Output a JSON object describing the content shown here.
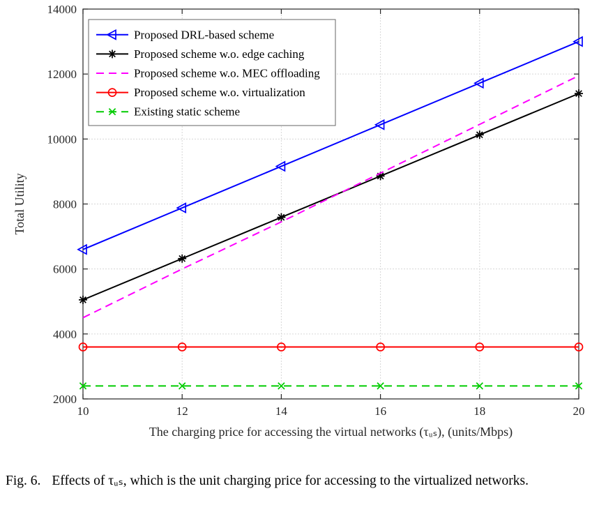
{
  "figure": {
    "caption_label": "Fig. 6.",
    "caption_text": "Effects of τᵤₛ, which is the unit charging price for accessing to the virtualized networks."
  },
  "chart_data": {
    "type": "line",
    "title": "",
    "xlabel": "The charging price for accessing the virtual networks (τᵤₛ), (units/Mbps)",
    "ylabel": "Total Utility",
    "xlim": [
      10,
      20
    ],
    "ylim": [
      2000,
      14000
    ],
    "xticks": [
      10,
      12,
      14,
      16,
      18,
      20
    ],
    "yticks": [
      2000,
      4000,
      6000,
      8000,
      10000,
      12000,
      14000
    ],
    "grid": true,
    "legend_position": "top-left",
    "x": [
      10,
      12,
      14,
      16,
      18,
      20
    ],
    "series": [
      {
        "name": "Proposed DRL-based scheme",
        "color": "#0000ff",
        "dash": "solid",
        "marker": "triangle-left",
        "values": [
          6600,
          7880,
          9160,
          10440,
          11720,
          13000
        ]
      },
      {
        "name": "Proposed scheme w.o. edge caching",
        "color": "#000000",
        "dash": "solid",
        "marker": "asterisk",
        "values": [
          5050,
          6320,
          7590,
          8860,
          10130,
          11400
        ]
      },
      {
        "name": "Proposed scheme w.o. MEC offloading",
        "color": "#ff00ff",
        "dash": "dashed",
        "marker": "none",
        "values": [
          4500,
          6000,
          7450,
          8950,
          10450,
          11950
        ]
      },
      {
        "name": "Proposed scheme w.o. virtualization",
        "color": "#ff0000",
        "dash": "solid",
        "marker": "circle",
        "values": [
          3600,
          3600,
          3600,
          3600,
          3600,
          3600
        ]
      },
      {
        "name": "Existing static scheme",
        "color": "#00cc00",
        "dash": "dashed",
        "marker": "x",
        "values": [
          2400,
          2400,
          2400,
          2400,
          2400,
          2400
        ]
      }
    ]
  }
}
